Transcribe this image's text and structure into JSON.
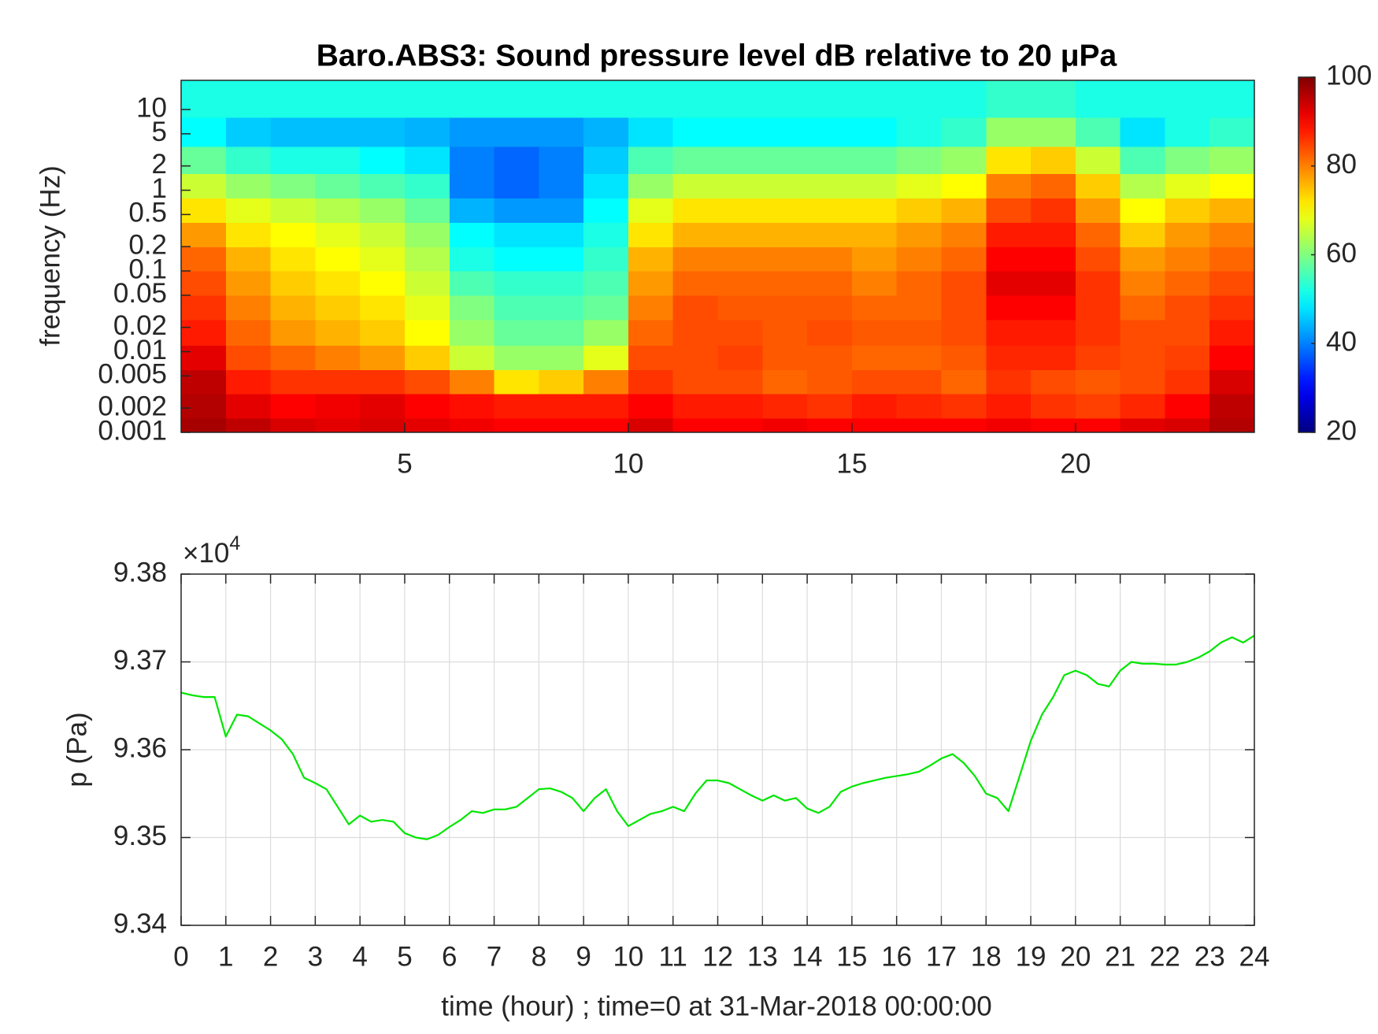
{
  "chart_data": [
    {
      "type": "heatmap",
      "title": "Baro.ABS3: Sound pressure level dB relative to 20 μPa",
      "ylabel": "frequency (Hz)",
      "y_log": true,
      "colormap": "jet",
      "xlim": [
        0,
        24
      ],
      "xticks": [
        5,
        10,
        15,
        20
      ],
      "ylim": [
        0.001,
        23
      ],
      "yticks": [
        0.001,
        0.002,
        0.005,
        0.01,
        0.02,
        0.05,
        0.1,
        0.2,
        0.5,
        1,
        2,
        5,
        10
      ],
      "clim": [
        20,
        100
      ],
      "cticks": [
        20,
        40,
        60,
        80,
        100
      ],
      "x_edges": [
        0,
        1,
        2,
        3,
        4,
        5,
        6,
        7,
        8,
        9,
        10,
        11,
        12,
        13,
        14,
        15,
        16,
        17,
        18,
        19,
        20,
        21,
        22,
        23,
        24
      ],
      "y_edges": [
        0.001,
        0.0015,
        0.003,
        0.006,
        0.012,
        0.025,
        0.05,
        0.1,
        0.2,
        0.4,
        0.8,
        1.6,
        3.5,
        8,
        23
      ],
      "z": [
        [
          97,
          95,
          93,
          92,
          93,
          92,
          91,
          90,
          90,
          90,
          93,
          90,
          90,
          91,
          90,
          90,
          90,
          90,
          91,
          90,
          90,
          92,
          93,
          96
        ],
        [
          96,
          92,
          90,
          91,
          92,
          90,
          89,
          88,
          88,
          88,
          90,
          88,
          88,
          87,
          86,
          88,
          87,
          86,
          88,
          86,
          85,
          87,
          90,
          95
        ],
        [
          95,
          88,
          86,
          86,
          86,
          84,
          80,
          72,
          74,
          80,
          86,
          84,
          84,
          82,
          83,
          84,
          84,
          82,
          86,
          84,
          83,
          84,
          86,
          93
        ],
        [
          92,
          84,
          82,
          80,
          78,
          74,
          66,
          62,
          62,
          68,
          84,
          84,
          85,
          83,
          83,
          82,
          82,
          83,
          87,
          87,
          85,
          84,
          85,
          90
        ],
        [
          88,
          82,
          78,
          76,
          74,
          70,
          62,
          58,
          58,
          62,
          82,
          84,
          84,
          83,
          84,
          83,
          83,
          84,
          88,
          88,
          86,
          84,
          84,
          88
        ],
        [
          86,
          80,
          76,
          74,
          72,
          68,
          60,
          56,
          56,
          58,
          80,
          84,
          83,
          83,
          83,
          82,
          82,
          84,
          90,
          90,
          86,
          82,
          84,
          86
        ],
        [
          84,
          78,
          74,
          72,
          70,
          66,
          56,
          54,
          54,
          56,
          78,
          82,
          82,
          82,
          82,
          80,
          82,
          84,
          92,
          92,
          86,
          80,
          82,
          84
        ],
        [
          82,
          76,
          72,
          70,
          68,
          64,
          52,
          50,
          50,
          54,
          76,
          80,
          80,
          80,
          80,
          78,
          80,
          82,
          90,
          90,
          84,
          78,
          80,
          82
        ],
        [
          78,
          72,
          70,
          68,
          66,
          62,
          50,
          48,
          48,
          52,
          72,
          76,
          76,
          76,
          76,
          76,
          78,
          80,
          88,
          88,
          82,
          74,
          78,
          80
        ],
        [
          72,
          68,
          66,
          64,
          62,
          58,
          44,
          42,
          42,
          50,
          68,
          72,
          72,
          72,
          72,
          72,
          74,
          76,
          84,
          86,
          78,
          70,
          74,
          76
        ],
        [
          66,
          62,
          60,
          58,
          56,
          54,
          40,
          38,
          40,
          48,
          62,
          66,
          66,
          66,
          66,
          66,
          68,
          70,
          80,
          82,
          74,
          64,
          68,
          70
        ],
        [
          58,
          54,
          52,
          52,
          50,
          48,
          40,
          38,
          40,
          46,
          56,
          58,
          58,
          58,
          58,
          58,
          60,
          62,
          72,
          74,
          66,
          56,
          60,
          62
        ],
        [
          50,
          46,
          45,
          45,
          45,
          44,
          42,
          42,
          42,
          44,
          48,
          50,
          50,
          50,
          50,
          50,
          52,
          54,
          62,
          62,
          56,
          48,
          52,
          54
        ],
        [
          52,
          52,
          52,
          52,
          52,
          52,
          52,
          52,
          52,
          52,
          52,
          52,
          52,
          52,
          52,
          52,
          52,
          52,
          54,
          54,
          52,
          52,
          52,
          52
        ]
      ]
    },
    {
      "type": "line",
      "xlabel": "time (hour) ; time=0 at 31-Mar-2018 00:00:00",
      "ylabel": "p (Pa)",
      "y_multiplier": "×10",
      "y_multiplier_exponent": "4",
      "grid": true,
      "xlim": [
        0,
        24
      ],
      "xticks": [
        0,
        1,
        2,
        3,
        4,
        5,
        6,
        7,
        8,
        9,
        10,
        11,
        12,
        13,
        14,
        15,
        16,
        17,
        18,
        19,
        20,
        21,
        22,
        23,
        24
      ],
      "ylim": [
        9.34,
        9.38
      ],
      "yticks": [
        9.34,
        9.35,
        9.36,
        9.37,
        9.38
      ],
      "x": [
        0,
        0.25,
        0.5,
        0.75,
        1,
        1.25,
        1.5,
        1.75,
        2,
        2.25,
        2.5,
        2.75,
        3,
        3.25,
        3.5,
        3.75,
        4,
        4.25,
        4.5,
        4.75,
        5,
        5.25,
        5.5,
        5.75,
        6,
        6.25,
        6.5,
        6.75,
        7,
        7.25,
        7.5,
        7.75,
        8,
        8.25,
        8.5,
        8.75,
        9,
        9.25,
        9.5,
        9.75,
        10,
        10.25,
        10.5,
        10.75,
        11,
        11.25,
        11.5,
        11.75,
        12,
        12.25,
        12.5,
        12.75,
        13,
        13.25,
        13.5,
        13.75,
        14,
        14.25,
        14.5,
        14.75,
        15,
        15.25,
        15.5,
        15.75,
        16,
        16.25,
        16.5,
        16.75,
        17,
        17.25,
        17.5,
        17.75,
        18,
        18.25,
        18.5,
        18.75,
        19,
        19.25,
        19.5,
        19.75,
        20,
        20.25,
        20.5,
        20.75,
        21,
        21.25,
        21.5,
        21.75,
        22,
        22.25,
        22.5,
        22.75,
        23,
        23.25,
        23.5,
        23.75,
        24
      ],
      "series": [
        {
          "color": "#00e600",
          "values": [
            9.3665,
            9.3662,
            9.366,
            9.366,
            9.3615,
            9.364,
            9.3638,
            9.363,
            9.3622,
            9.3612,
            9.3595,
            9.3568,
            9.3562,
            9.3555,
            9.3535,
            9.3515,
            9.3525,
            9.3518,
            9.352,
            9.3518,
            9.3505,
            9.35,
            9.3498,
            9.3503,
            9.3512,
            9.352,
            9.353,
            9.3528,
            9.3532,
            9.3532,
            9.3535,
            9.3545,
            9.3555,
            9.3556,
            9.3552,
            9.3545,
            9.353,
            9.3545,
            9.3555,
            9.353,
            9.3513,
            9.352,
            9.3527,
            9.353,
            9.3535,
            9.353,
            9.355,
            9.3565,
            9.3565,
            9.3562,
            9.3555,
            9.3548,
            9.3542,
            9.3548,
            9.3542,
            9.3545,
            9.3533,
            9.3528,
            9.3535,
            9.3552,
            9.3558,
            9.3562,
            9.3565,
            9.3568,
            9.357,
            9.3572,
            9.3575,
            9.3582,
            9.359,
            9.3595,
            9.3585,
            9.357,
            9.355,
            9.3545,
            9.353,
            9.357,
            9.361,
            9.364,
            9.366,
            9.3685,
            9.369,
            9.3685,
            9.3675,
            9.3672,
            9.369,
            9.37,
            9.3698,
            9.3698,
            9.3697,
            9.3697,
            9.37,
            9.3705,
            9.3712,
            9.3722,
            9.3728,
            9.3722,
            9.373
          ]
        }
      ]
    }
  ]
}
